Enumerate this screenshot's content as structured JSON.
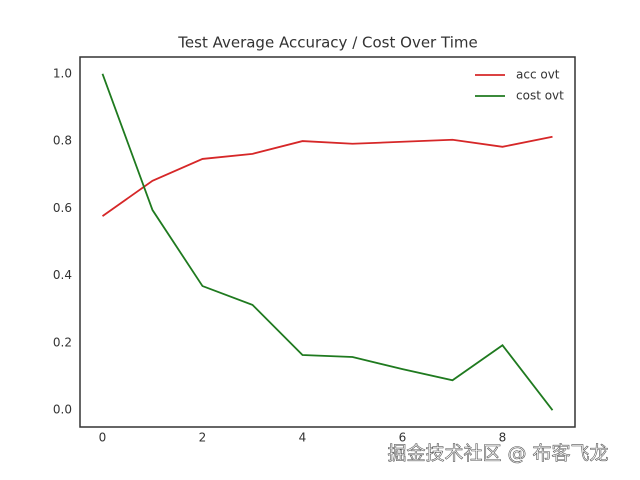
{
  "chart_data": {
    "type": "line",
    "title": "Test Average Accuracy / Cost Over Time",
    "x": [
      0,
      1,
      2,
      3,
      4,
      5,
      6,
      7,
      8,
      9
    ],
    "series": [
      {
        "name": "acc ovt",
        "color": "#d62728",
        "values": [
          0.577,
          0.682,
          0.747,
          0.762,
          0.8,
          0.792,
          0.798,
          0.804,
          0.783,
          0.813
        ]
      },
      {
        "name": "cost ovt",
        "color": "#1f7a1f",
        "values": [
          1.0,
          0.595,
          0.369,
          0.313,
          0.164,
          0.158,
          0.122,
          0.089,
          0.193,
          0.0
        ]
      }
    ],
    "xlim": [
      -0.45,
      9.45
    ],
    "ylim": [
      -0.05,
      1.05
    ],
    "xticks": [
      0,
      2,
      4,
      6,
      8
    ],
    "yticks": [
      {
        "value": 0,
        "label": "0.0"
      },
      {
        "value": 0.2,
        "label": "0.2"
      },
      {
        "value": 0.4,
        "label": "0.4"
      },
      {
        "value": 0.6,
        "label": "0.6"
      },
      {
        "value": 0.8,
        "label": "0.8"
      },
      {
        "value": 1,
        "label": "1.0"
      }
    ],
    "grid": false,
    "legend": "upper right",
    "watermark": "掘金技术社区 @ 布客飞龙"
  }
}
